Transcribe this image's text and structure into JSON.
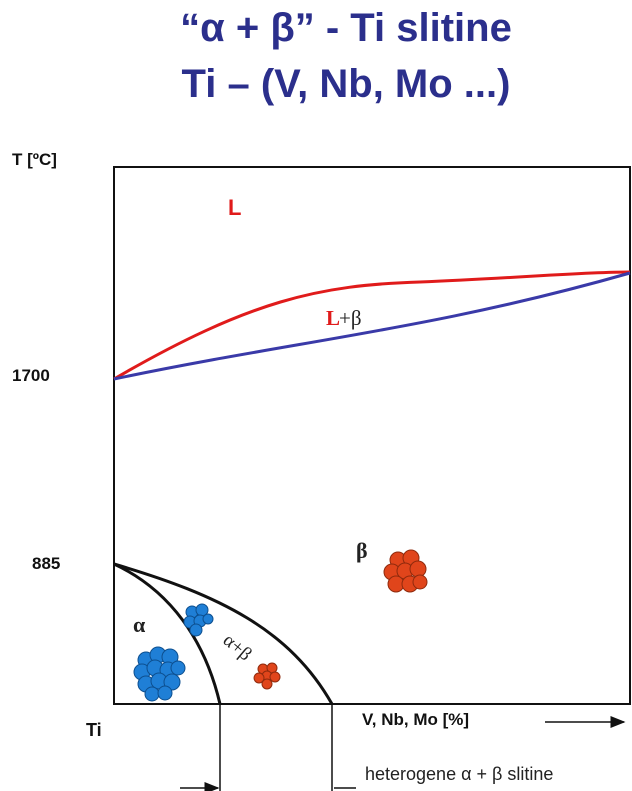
{
  "title": {
    "line1": "“α + β” - Ti   slitine",
    "line2": "Ti – (V, Nb, Mo ...)"
  },
  "axes": {
    "y_label": "T [ºC]",
    "y_ticks": [
      "1700",
      "885"
    ],
    "x_origin_label": "Ti",
    "x_label": "V, Nb, Mo [%]"
  },
  "regions": {
    "liquid": "L",
    "liquid_beta_L": "L",
    "liquid_beta_rest": "+β",
    "beta": "β",
    "alpha": "α",
    "alpha_beta": "α+β"
  },
  "bottom_note": "heterogene α + β slitine",
  "colors": {
    "title": "#2b2f8c",
    "liquidus": "#e01b1b",
    "solidus": "#3a3aa8",
    "alpha_grain": "#1f7fd6",
    "beta_grain": "#e0451b"
  }
}
